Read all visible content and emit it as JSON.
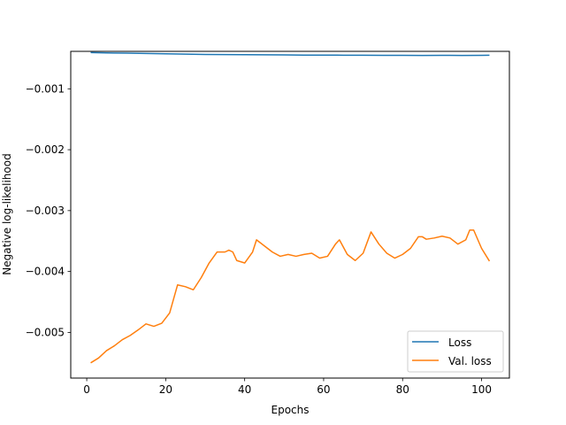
{
  "chart_data": {
    "type": "line",
    "title": "",
    "xlabel": "Epochs",
    "ylabel": "Negative log-likelihood",
    "xlim": [
      -4.05,
      107.05
    ],
    "ylim": [
      -0.00575,
      -0.000385
    ],
    "xticks": [
      0,
      20,
      40,
      60,
      80,
      100
    ],
    "xtick_labels": [
      "0",
      "20",
      "40",
      "60",
      "80",
      "100"
    ],
    "yticks": [
      -0.001,
      -0.002,
      -0.003,
      -0.004,
      -0.005
    ],
    "ytick_labels": [
      "−0.001",
      "−0.002",
      "−0.003",
      "−0.004",
      "−0.005"
    ],
    "grid": false,
    "legend_position": "lower-right",
    "colors": {
      "loss": "#1f77b4",
      "val_loss": "#ff7f0e"
    },
    "series": [
      {
        "name": "Loss",
        "x": [
          1,
          5,
          10,
          15,
          20,
          25,
          30,
          35,
          40,
          45,
          50,
          55,
          60,
          65,
          70,
          75,
          80,
          85,
          90,
          95,
          100,
          102
        ],
        "y": [
          -0.000405,
          -0.00041,
          -0.000415,
          -0.00042,
          -0.000425,
          -0.00043,
          -0.000435,
          -0.000438,
          -0.00044,
          -0.000442,
          -0.000444,
          -0.000446,
          -0.000446,
          -0.000448,
          -0.000448,
          -0.00045,
          -0.00045,
          -0.000452,
          -0.00045,
          -0.000452,
          -0.00045,
          -0.000448
        ]
      },
      {
        "name": "Val. loss",
        "x": [
          1,
          3,
          5,
          7,
          9,
          11,
          13,
          15,
          17,
          19,
          21,
          23,
          25,
          27,
          29,
          31,
          33,
          35,
          36,
          37,
          38,
          40,
          42,
          43,
          45,
          47,
          49,
          51,
          53,
          55,
          57,
          59,
          61,
          63,
          64,
          66,
          68,
          70,
          72,
          74,
          76,
          78,
          80,
          82,
          84,
          85,
          86,
          88,
          90,
          92,
          94,
          96,
          97,
          98,
          100,
          102
        ],
        "y": [
          -0.0055,
          -0.00542,
          -0.0053,
          -0.00522,
          -0.00512,
          -0.00505,
          -0.00496,
          -0.00486,
          -0.0049,
          -0.00485,
          -0.00468,
          -0.00422,
          -0.00425,
          -0.0043,
          -0.0041,
          -0.00386,
          -0.00368,
          -0.00368,
          -0.00365,
          -0.00368,
          -0.00382,
          -0.00386,
          -0.00368,
          -0.00348,
          -0.00358,
          -0.00368,
          -0.00375,
          -0.00372,
          -0.00375,
          -0.00372,
          -0.0037,
          -0.00378,
          -0.00375,
          -0.00355,
          -0.00348,
          -0.00372,
          -0.00382,
          -0.0037,
          -0.00335,
          -0.00355,
          -0.0037,
          -0.00378,
          -0.00372,
          -0.00362,
          -0.00343,
          -0.00343,
          -0.00347,
          -0.00345,
          -0.00342,
          -0.00345,
          -0.00355,
          -0.00348,
          -0.00332,
          -0.00332,
          -0.00362,
          -0.00383
        ]
      }
    ]
  }
}
